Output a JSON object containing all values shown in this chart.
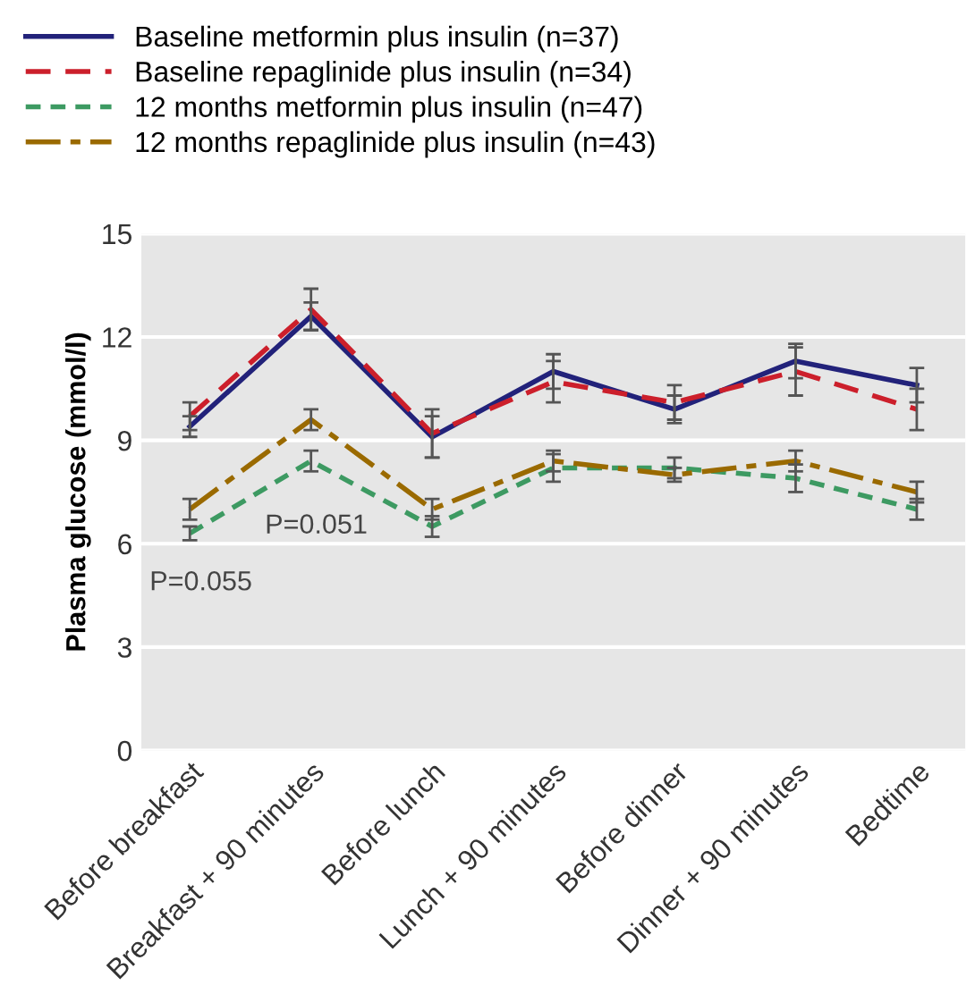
{
  "chart_data": {
    "type": "line",
    "ylabel": "Plasma glucose (mmol/l)",
    "categories": [
      "Before breakfast",
      "Breakfast + 90 minutes",
      "Before lunch",
      "Lunch + 90 minutes",
      "Before dinner",
      "Dinner + 90 minutes",
      "Bedtime"
    ],
    "series": [
      {
        "name": "Baseline metformin plus insulin (n=37)",
        "color": "#22227a",
        "line_style": "solid",
        "values": [
          9.4,
          12.6,
          9.1,
          11.0,
          9.9,
          11.3,
          10.6
        ],
        "errors": [
          0.3,
          0.4,
          0.6,
          0.5,
          0.4,
          0.5,
          0.5
        ]
      },
      {
        "name": "Baseline repaglinide plus insulin (n=34)",
        "color": "#cc1f2b",
        "line_style": "dashed",
        "values": [
          9.7,
          12.8,
          9.2,
          10.7,
          10.1,
          11.0,
          9.9
        ],
        "errors": [
          0.4,
          0.6,
          0.7,
          0.6,
          0.5,
          0.7,
          0.6
        ]
      },
      {
        "name": "12 months metformin plus insulin (n=47)",
        "color": "#3d9a62",
        "line_style": "dotted",
        "values": [
          6.3,
          8.4,
          6.5,
          8.2,
          8.2,
          7.9,
          7.0
        ],
        "errors": [
          0.2,
          0.3,
          0.3,
          0.4,
          0.3,
          0.4,
          0.3
        ]
      },
      {
        "name": "12 months repaglinide plus insulin (n=43)",
        "color": "#9a6a00",
        "line_style": "dashdot",
        "values": [
          7.0,
          9.6,
          7.0,
          8.4,
          8.0,
          8.4,
          7.5
        ],
        "errors": [
          0.3,
          0.3,
          0.3,
          0.3,
          0.2,
          0.3,
          0.3
        ]
      }
    ],
    "ylim": [
      0,
      15
    ],
    "yticks": [
      0,
      3,
      6,
      9,
      12,
      15
    ],
    "grid": "y",
    "legend": "top left",
    "annotations": [
      "P=0.055",
      "P=0.051"
    ]
  }
}
